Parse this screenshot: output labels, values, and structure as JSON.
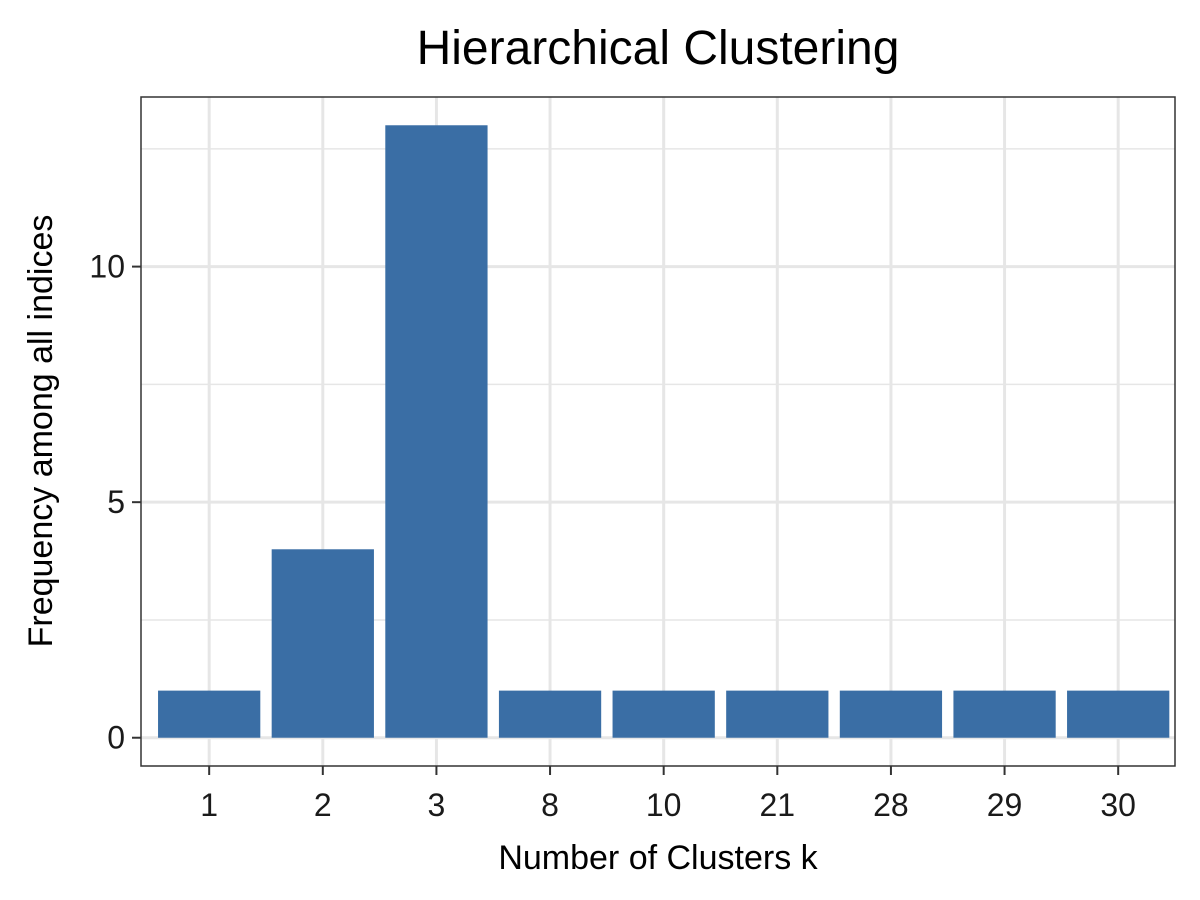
{
  "chart_data": {
    "type": "bar",
    "title": "Hierarchical Clustering",
    "xlabel": "Number of Clusters k",
    "ylabel": "Frequency among all indices",
    "categories": [
      "1",
      "2",
      "3",
      "8",
      "10",
      "21",
      "28",
      "29",
      "30"
    ],
    "values": [
      1,
      4,
      13,
      1,
      1,
      1,
      1,
      1,
      1
    ],
    "ylim": [
      -0.6,
      13.6
    ],
    "yticks": [
      0,
      5,
      10
    ],
    "y_minor_gridlines": [
      2.5,
      7.5,
      12.5
    ],
    "grid": true,
    "legend": "none",
    "bar_color": "#3a6ea5",
    "grid_color": "#e6e6e6",
    "panel_border_color": "#333333"
  }
}
